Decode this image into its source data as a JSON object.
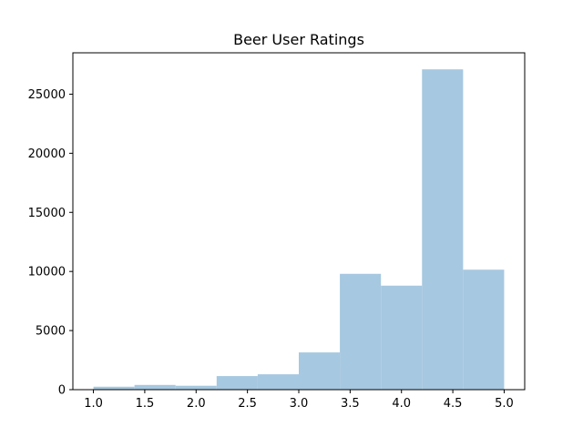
{
  "chart_data": {
    "type": "bar",
    "title": "Beer User Ratings",
    "xlabel": "",
    "ylabel": "",
    "bin_edges": [
      1.0,
      1.4,
      1.8,
      2.2,
      2.6,
      3.0,
      3.4,
      3.8,
      4.2,
      4.6,
      5.0
    ],
    "values": [
      250,
      400,
      330,
      1150,
      1300,
      3150,
      9800,
      8800,
      27100,
      10150
    ],
    "xlim": [
      0.8,
      5.2
    ],
    "ylim": [
      0,
      28500
    ],
    "xticks": [
      1.0,
      1.5,
      2.0,
      2.5,
      3.0,
      3.5,
      4.0,
      4.5,
      5.0
    ],
    "xtick_labels": [
      "1.0",
      "1.5",
      "2.0",
      "2.5",
      "3.0",
      "3.5",
      "4.0",
      "4.5",
      "5.0"
    ],
    "yticks": [
      0,
      5000,
      10000,
      15000,
      20000,
      25000
    ],
    "ytick_labels": [
      "0",
      "5000",
      "10000",
      "15000",
      "20000",
      "25000"
    ],
    "grid": false,
    "bar_color": "#a6c8e0"
  }
}
